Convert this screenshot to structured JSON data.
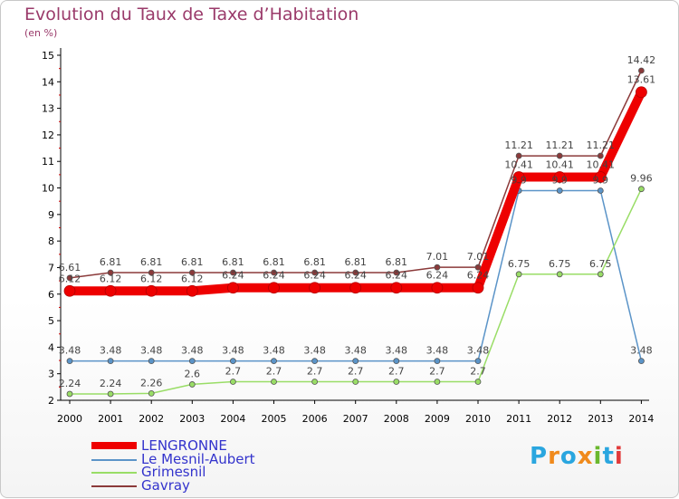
{
  "chart_data": {
    "type": "line",
    "title": "Evolution du Taux de Taxe d’Habitation",
    "subtitle": "(en %)",
    "xlabel": "",
    "ylabel": "",
    "ylim": [
      2,
      15
    ],
    "yticks": [
      2,
      3,
      4,
      5,
      6,
      7,
      8,
      9,
      10,
      11,
      12,
      13,
      14,
      15
    ],
    "categories": [
      "2000",
      "2001",
      "2002",
      "2003",
      "2004",
      "2005",
      "2006",
      "2007",
      "2008",
      "2009",
      "2010",
      "2011",
      "2012",
      "2013",
      "2014"
    ],
    "series": [
      {
        "name": "LENGRONNE",
        "color": "#ee0000",
        "values": [
          6.12,
          6.12,
          6.12,
          6.12,
          6.24,
          6.24,
          6.24,
          6.24,
          6.24,
          6.24,
          6.24,
          10.41,
          10.41,
          10.41,
          13.61
        ],
        "labels": [
          "6.12",
          "6.12",
          "6.12",
          "6.12",
          "6.24",
          "6.24",
          "6.24",
          "6.24",
          "6.24",
          "6.24",
          "6.24",
          "10.41",
          "10.41",
          "10.41",
          "13.61"
        ]
      },
      {
        "name": "Le Mesnil-Aubert",
        "color": "#5b94c8",
        "values": [
          3.48,
          3.48,
          3.48,
          3.48,
          3.48,
          3.48,
          3.48,
          3.48,
          3.48,
          3.48,
          3.48,
          9.9,
          9.9,
          9.9,
          3.48
        ],
        "labels": [
          "3.48",
          "3.48",
          "3.48",
          "3.48",
          "3.48",
          "3.48",
          "3.48",
          "3.48",
          "3.48",
          "3.48",
          "3.48",
          "9.9",
          "9.9",
          "9.9",
          "3.48"
        ]
      },
      {
        "name": "Grimesnil",
        "color": "#99dd66",
        "values": [
          2.24,
          2.24,
          2.26,
          2.6,
          2.7,
          2.7,
          2.7,
          2.7,
          2.7,
          2.7,
          2.7,
          6.75,
          6.75,
          6.75,
          9.96
        ],
        "labels": [
          "2.24",
          "2.24",
          "2.26",
          "2.6",
          "2.7",
          "2.7",
          "2.7",
          "2.7",
          "2.7",
          "2.7",
          "2.7",
          "6.75",
          "6.75",
          "6.75",
          "9.96"
        ]
      },
      {
        "name": "Gavray",
        "color": "#8b3a3a",
        "values": [
          6.61,
          6.81,
          6.81,
          6.81,
          6.81,
          6.81,
          6.81,
          6.81,
          6.81,
          7.01,
          7.01,
          11.21,
          11.21,
          11.21,
          14.42
        ],
        "labels": [
          "6.61",
          "6.81",
          "6.81",
          "6.81",
          "6.81",
          "6.81",
          "6.81",
          "6.81",
          "6.81",
          "7.01",
          "7.01",
          "11.21",
          "11.21",
          "11.21",
          "14.42"
        ]
      }
    ],
    "legend_position": "bottom-left"
  },
  "logo": {
    "text": "Proxiti",
    "letters": [
      "P",
      "r",
      "o",
      "x",
      "i",
      "t",
      "i"
    ],
    "colors": [
      "#2aa6df",
      "#f08a1c",
      "#2aa6df",
      "#f08a1c",
      "#6ab82e",
      "#2aa6df",
      "#e23b3b"
    ]
  }
}
